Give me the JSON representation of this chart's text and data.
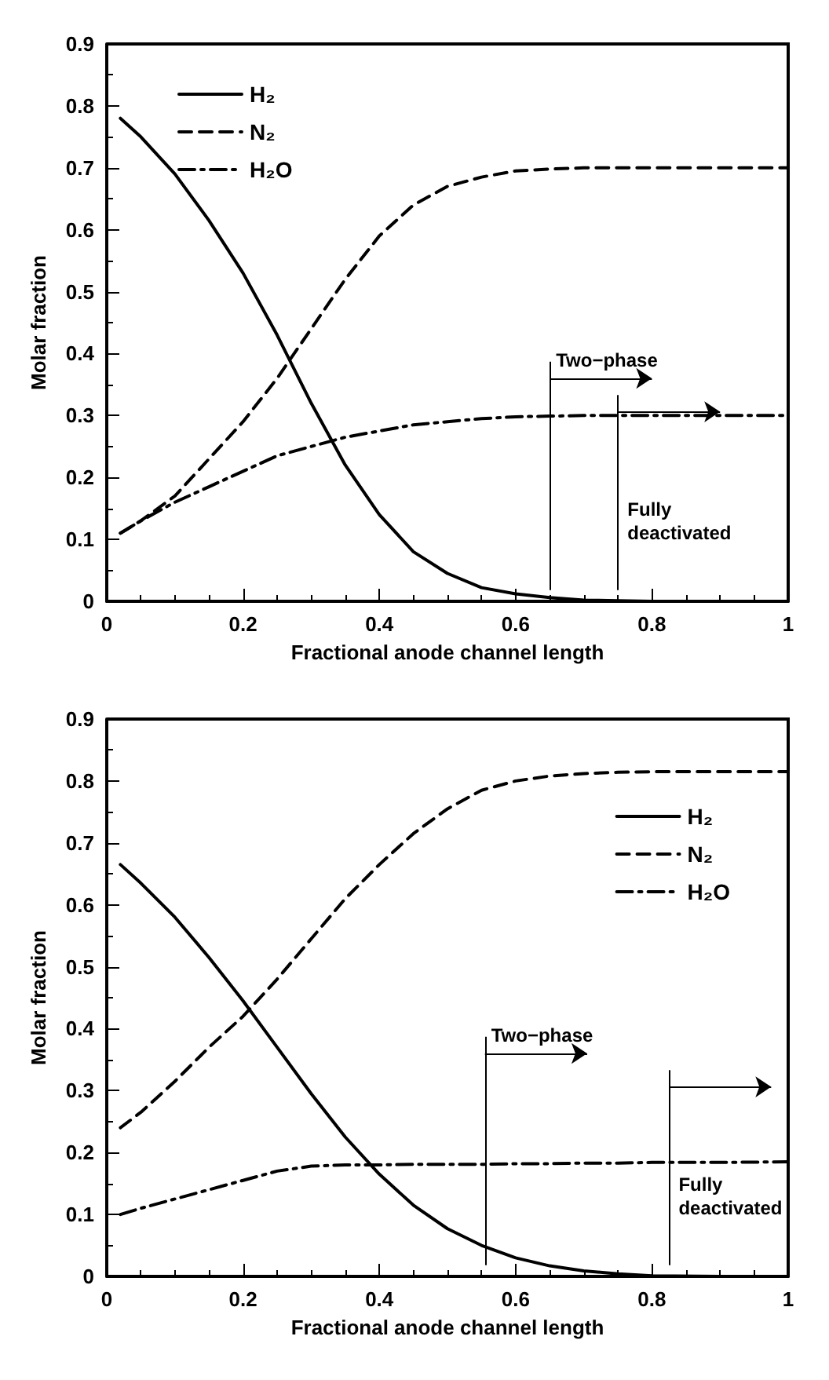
{
  "chart_data": [
    {
      "type": "line",
      "xlabel": "Fractional anode channel length",
      "ylabel": "Molar fraction",
      "xlim": [
        0,
        1
      ],
      "ylim": [
        0,
        0.9
      ],
      "xticks": [
        0,
        0.2,
        0.4,
        0.6,
        0.8,
        1
      ],
      "yticks": [
        0,
        0.1,
        0.2,
        0.3,
        0.4,
        0.5,
        0.6,
        0.7,
        0.8,
        0.9
      ],
      "legend": "top left",
      "grid": false,
      "marker": "none",
      "x": [
        0.02,
        0.05,
        0.1,
        0.15,
        0.2,
        0.25,
        0.3,
        0.35,
        0.4,
        0.45,
        0.5,
        0.55,
        0.6,
        0.65,
        0.7,
        0.75,
        0.8,
        0.9,
        1
      ],
      "series": [
        {
          "name": "H₂",
          "color": "#000000",
          "line_style": "solid",
          "values": [
            0.78,
            0.75,
            0.69,
            0.615,
            0.53,
            0.43,
            0.32,
            0.22,
            0.14,
            0.08,
            0.045,
            0.022,
            0.012,
            0.006,
            0.002,
            0.001,
            0,
            0,
            0
          ]
        },
        {
          "name": "N₂",
          "color": "#000000",
          "line_style": "dashed",
          "values": [
            0.11,
            0.13,
            0.17,
            0.23,
            0.29,
            0.36,
            0.44,
            0.52,
            0.59,
            0.64,
            0.67,
            0.685,
            0.695,
            0.698,
            0.7,
            0.7,
            0.7,
            0.7,
            0.7
          ]
        },
        {
          "name": "H₂O",
          "color": "#000000",
          "line_style": "dashdot",
          "values": [
            0.11,
            0.13,
            0.16,
            0.185,
            0.21,
            0.235,
            0.25,
            0.265,
            0.275,
            0.285,
            0.29,
            0.295,
            0.298,
            0.299,
            0.3,
            0.3,
            0.3,
            0.3,
            0.3
          ]
        }
      ],
      "ref_lines": [
        {
          "axis": "x",
          "value": 0.65,
          "label": "Two−phase"
        },
        {
          "axis": "x",
          "value": 0.75,
          "label": "Fully deactivated"
        }
      ]
    },
    {
      "type": "line",
      "xlabel": "Fractional anode channel length",
      "ylabel": "Molar fraction",
      "xlim": [
        0,
        1
      ],
      "ylim": [
        0,
        0.9
      ],
      "xticks": [
        0,
        0.2,
        0.4,
        0.6,
        0.8,
        1
      ],
      "yticks": [
        0,
        0.1,
        0.2,
        0.3,
        0.4,
        0.5,
        0.6,
        0.7,
        0.8,
        0.9
      ],
      "legend": "top right",
      "grid": false,
      "marker": "none",
      "x": [
        0.02,
        0.05,
        0.1,
        0.15,
        0.2,
        0.25,
        0.3,
        0.35,
        0.4,
        0.45,
        0.5,
        0.55,
        0.6,
        0.65,
        0.7,
        0.75,
        0.8,
        0.9,
        1
      ],
      "series": [
        {
          "name": "H₂",
          "color": "#000000",
          "line_style": "solid",
          "values": [
            0.665,
            0.635,
            0.58,
            0.515,
            0.445,
            0.37,
            0.295,
            0.225,
            0.165,
            0.115,
            0.077,
            0.05,
            0.03,
            0.017,
            0.009,
            0.004,
            0.001,
            0,
            0
          ]
        },
        {
          "name": "N₂",
          "color": "#000000",
          "line_style": "dashed",
          "values": [
            0.24,
            0.265,
            0.315,
            0.37,
            0.42,
            0.48,
            0.545,
            0.61,
            0.665,
            0.715,
            0.755,
            0.785,
            0.8,
            0.808,
            0.812,
            0.814,
            0.815,
            0.815,
            0.815
          ]
        },
        {
          "name": "H₂O",
          "color": "#000000",
          "line_style": "dashdot",
          "values": [
            0.1,
            0.11,
            0.125,
            0.14,
            0.155,
            0.17,
            0.178,
            0.18,
            0.18,
            0.181,
            0.181,
            0.181,
            0.182,
            0.182,
            0.183,
            0.183,
            0.184,
            0.184,
            0.185
          ]
        }
      ],
      "ref_lines": [
        {
          "axis": "x",
          "value": 0.555,
          "label": "Two−phase"
        },
        {
          "axis": "x",
          "value": 0.825,
          "label": "Fully deactivated"
        }
      ]
    }
  ]
}
